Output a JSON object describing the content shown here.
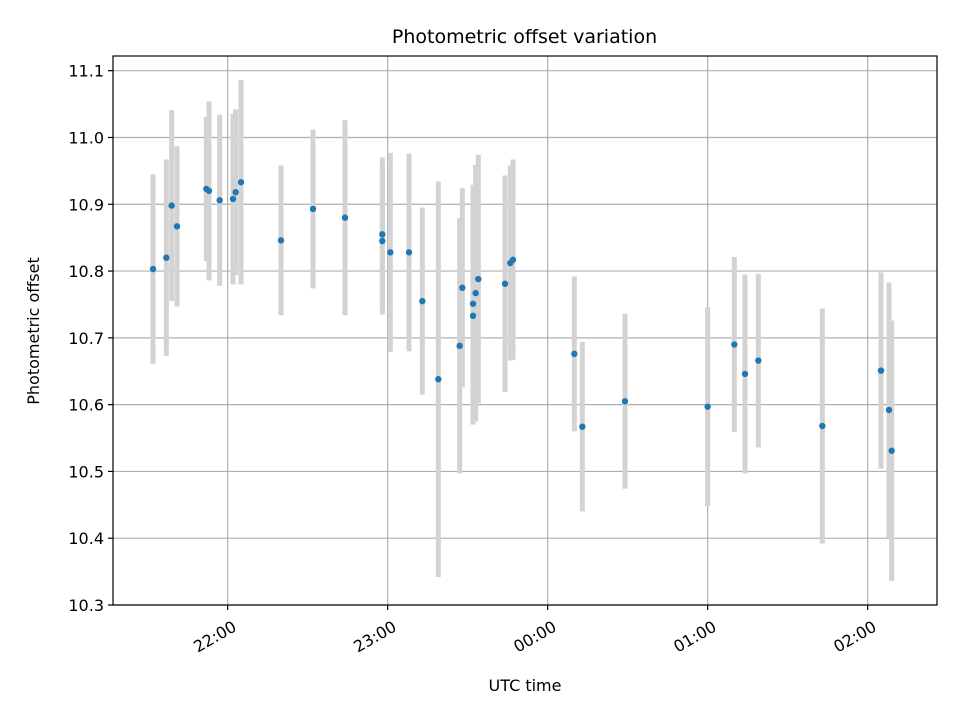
{
  "chart_data": {
    "type": "scatter",
    "title": "Photometric offset variation",
    "xlabel": "UTC time",
    "ylabel": "Photometric offset",
    "grid": true,
    "legend": "none",
    "x_axis": "time",
    "xlim": [
      "21:17",
      "02:26"
    ],
    "ylim": [
      10.3,
      11.122
    ],
    "x_ticks": [
      "22:00",
      "23:00",
      "00:00",
      "01:00",
      "02:00"
    ],
    "y_ticks": [
      "10.3",
      "10.4",
      "10.5",
      "10.6",
      "10.7",
      "10.8",
      "10.9",
      "11.0",
      "11.1"
    ],
    "colors": {
      "point": "#1f77b4",
      "errorbar": "#d3d3d3",
      "grid": "#b0b0b0"
    },
    "points": [
      {
        "x": "21:32",
        "y": 10.803,
        "err": 0.142
      },
      {
        "x": "21:37",
        "y": 10.82,
        "err": 0.147
      },
      {
        "x": "21:39",
        "y": 10.898,
        "err": 0.143
      },
      {
        "x": "21:41",
        "y": 10.867,
        "err": 0.12
      },
      {
        "x": "21:52",
        "y": 10.923,
        "err": 0.108
      },
      {
        "x": "21:53",
        "y": 10.92,
        "err": 0.134
      },
      {
        "x": "21:57",
        "y": 10.906,
        "err": 0.128
      },
      {
        "x": "22:02",
        "y": 10.908,
        "err": 0.128
      },
      {
        "x": "22:03",
        "y": 10.918,
        "err": 0.124
      },
      {
        "x": "22:05",
        "y": 10.933,
        "err": 0.153
      },
      {
        "x": "22:20",
        "y": 10.846,
        "err": 0.112
      },
      {
        "x": "22:32",
        "y": 10.893,
        "err": 0.119
      },
      {
        "x": "22:44",
        "y": 10.88,
        "err": 0.146
      },
      {
        "x": "22:58",
        "y": 10.855,
        "err": 0.115
      },
      {
        "x": "22:58",
        "y": 10.845,
        "err": 0.11
      },
      {
        "x": "23:01",
        "y": 10.828,
        "err": 0.149
      },
      {
        "x": "23:08",
        "y": 10.828,
        "err": 0.148
      },
      {
        "x": "23:13",
        "y": 10.755,
        "err": 0.14
      },
      {
        "x": "23:19",
        "y": 10.638,
        "err": 0.296
      },
      {
        "x": "23:27",
        "y": 10.688,
        "err": 0.191
      },
      {
        "x": "23:28",
        "y": 10.775,
        "err": 0.149
      },
      {
        "x": "23:32",
        "y": 10.733,
        "err": 0.163
      },
      {
        "x": "23:32",
        "y": 10.751,
        "err": 0.178
      },
      {
        "x": "23:33",
        "y": 10.767,
        "err": 0.192
      },
      {
        "x": "23:34",
        "y": 10.788,
        "err": 0.186
      },
      {
        "x": "23:44",
        "y": 10.781,
        "err": 0.162
      },
      {
        "x": "23:46",
        "y": 10.812,
        "err": 0.146
      },
      {
        "x": "23:47",
        "y": 10.817,
        "err": 0.15
      },
      {
        "x": "00:10",
        "y": 10.676,
        "err": 0.116
      },
      {
        "x": "00:13",
        "y": 10.567,
        "err": 0.127
      },
      {
        "x": "00:29",
        "y": 10.605,
        "err": 0.131
      },
      {
        "x": "01:00",
        "y": 10.597,
        "err": 0.149
      },
      {
        "x": "01:10",
        "y": 10.69,
        "err": 0.131
      },
      {
        "x": "01:14",
        "y": 10.646,
        "err": 0.149
      },
      {
        "x": "01:19",
        "y": 10.666,
        "err": 0.13
      },
      {
        "x": "01:43",
        "y": 10.568,
        "err": 0.176
      },
      {
        "x": "02:05",
        "y": 10.651,
        "err": 0.147
      },
      {
        "x": "02:08",
        "y": 10.592,
        "err": 0.191
      },
      {
        "x": "02:09",
        "y": 10.531,
        "err": 0.195
      }
    ]
  }
}
